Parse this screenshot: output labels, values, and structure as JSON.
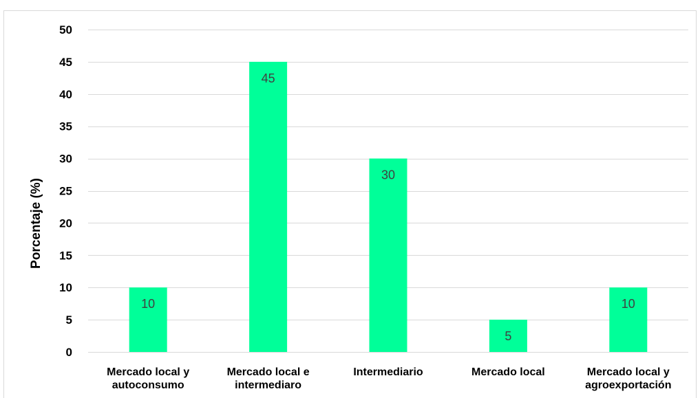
{
  "chart_data": {
    "type": "bar",
    "title": "",
    "xlabel": "",
    "ylabel": "Porcentaje (%)",
    "categories": [
      [
        "Mercado local y",
        "autoconsumo"
      ],
      [
        "Mercado local e",
        "intermediaro"
      ],
      [
        "Intermediario"
      ],
      [
        "Mercado local"
      ],
      [
        "Mercado local y",
        "agroexportación"
      ]
    ],
    "values": [
      10,
      45,
      30,
      5,
      10
    ],
    "data_labels": [
      "10",
      "45",
      "30",
      "5",
      "10"
    ],
    "ylim": [
      0,
      50
    ],
    "yticks": [
      0,
      5,
      10,
      15,
      20,
      25,
      30,
      35,
      40,
      45,
      50
    ],
    "grid": true,
    "legend": "none",
    "colors": {
      "bar": "#00FF99",
      "grid": "#D9D9D9",
      "frame": "#D9D9D9"
    }
  }
}
